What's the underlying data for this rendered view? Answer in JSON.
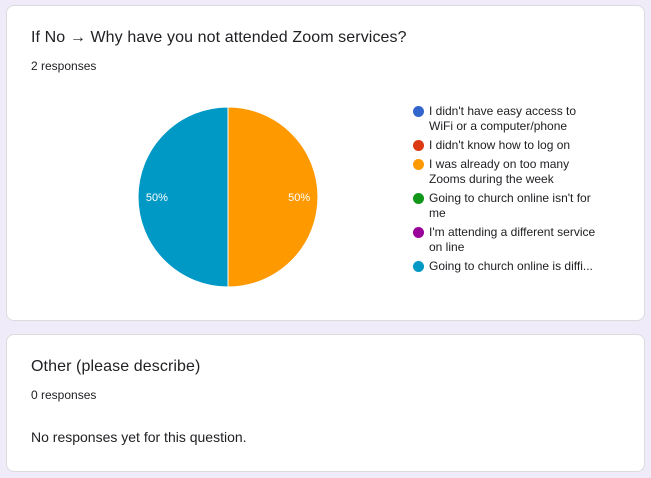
{
  "question1": {
    "title": "If No → Why have you not attended Zoom services?",
    "responses": "2 responses"
  },
  "question2": {
    "title": "Other (please describe)",
    "responses": "0 responses",
    "empty_text": "No responses yet for this question."
  },
  "chart_data": {
    "type": "pie",
    "legend_position": "right",
    "categories": [
      "I didn't have easy access to WiFi or a computer/phone",
      "I didn't know how to log on",
      "I was already on too many Zooms during the week",
      "Going to church online isn't for me",
      "I'm attending a different service on line",
      "Going to church online is diffi..."
    ],
    "legend": [
      {
        "label": [
          "I didn't have easy access to",
          "WiFi or a computer/phone"
        ],
        "color": "#3366cc"
      },
      {
        "label": [
          "I didn't know how to log on"
        ],
        "color": "#dc3912"
      },
      {
        "label": [
          "I was already on too many",
          "Zooms during the week"
        ],
        "color": "#ff9900"
      },
      {
        "label": [
          "Going to church online isn't for",
          "me"
        ],
        "color": "#109618"
      },
      {
        "label": [
          "I'm attending a different service",
          "on line"
        ],
        "color": "#990099"
      },
      {
        "label": [
          "Going to church online is diffi..."
        ],
        "color": "#0099c6"
      }
    ],
    "values": [
      0,
      0,
      1,
      0,
      0,
      1
    ],
    "data_labels": [
      "",
      "",
      "50%",
      "",
      "",
      "50%"
    ]
  }
}
